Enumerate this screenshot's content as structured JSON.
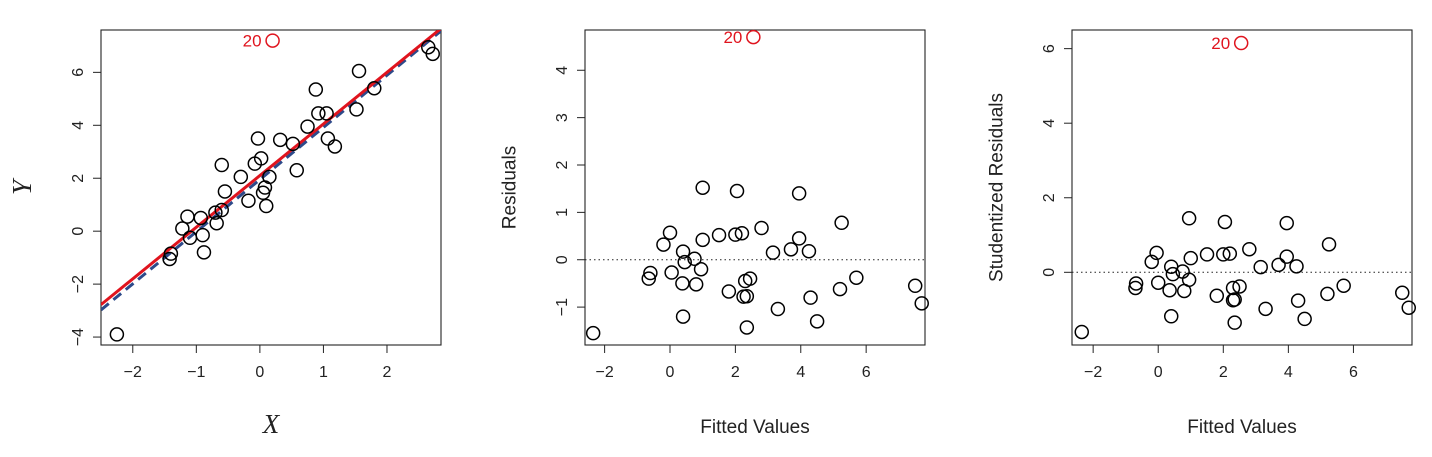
{
  "colors": {
    "points": "#000000",
    "highlight": "#e0141e",
    "fit_line": "#e0141e",
    "dashed_line": "#2d4a8a",
    "axis": "#222222"
  },
  "chart_data": [
    {
      "type": "scatter",
      "xlabel": "X",
      "ylabel": "Y",
      "xlim": [
        -2.5,
        2.85
      ],
      "ylim": [
        -4.3,
        7.6
      ],
      "xticks": [
        -2,
        -1,
        0,
        1,
        2
      ],
      "yticks": [
        -4,
        -2,
        0,
        2,
        4,
        6
      ],
      "annotation": {
        "label": "20",
        "x": 0.2,
        "y": 7.2
      },
      "points": [
        {
          "x": -2.25,
          "y": -3.9
        },
        {
          "x": -1.42,
          "y": -1.05
        },
        {
          "x": -1.4,
          "y": -0.85
        },
        {
          "x": -1.22,
          "y": 0.1
        },
        {
          "x": -1.14,
          "y": 0.55
        },
        {
          "x": -1.1,
          "y": -0.25
        },
        {
          "x": -0.93,
          "y": 0.5
        },
        {
          "x": -0.9,
          "y": -0.15
        },
        {
          "x": -0.88,
          "y": -0.8
        },
        {
          "x": -0.7,
          "y": 0.7
        },
        {
          "x": -0.68,
          "y": 0.3
        },
        {
          "x": -0.6,
          "y": 0.8
        },
        {
          "x": -0.6,
          "y": 2.5
        },
        {
          "x": -0.55,
          "y": 1.5
        },
        {
          "x": -0.3,
          "y": 2.05
        },
        {
          "x": -0.18,
          "y": 1.15
        },
        {
          "x": -0.08,
          "y": 2.55
        },
        {
          "x": -0.03,
          "y": 3.5
        },
        {
          "x": 0.02,
          "y": 2.75
        },
        {
          "x": 0.05,
          "y": 1.45
        },
        {
          "x": 0.08,
          "y": 1.65
        },
        {
          "x": 0.1,
          "y": 0.95
        },
        {
          "x": 0.15,
          "y": 2.05
        },
        {
          "x": 0.32,
          "y": 3.45
        },
        {
          "x": 0.52,
          "y": 3.3
        },
        {
          "x": 0.58,
          "y": 2.3
        },
        {
          "x": 0.75,
          "y": 3.95
        },
        {
          "x": 0.88,
          "y": 5.35
        },
        {
          "x": 0.92,
          "y": 4.45
        },
        {
          "x": 1.05,
          "y": 4.45
        },
        {
          "x": 1.07,
          "y": 3.5
        },
        {
          "x": 1.18,
          "y": 3.2
        },
        {
          "x": 1.52,
          "y": 4.6
        },
        {
          "x": 1.56,
          "y": 6.05
        },
        {
          "x": 1.8,
          "y": 5.4
        },
        {
          "x": 2.65,
          "y": 6.95
        },
        {
          "x": 2.72,
          "y": 6.7
        }
      ],
      "highlight_point": {
        "x": 0.2,
        "y": 7.2
      },
      "fit_line": {
        "intercept": 2.1,
        "slope": 1.95
      },
      "dashed_line": {
        "intercept": 1.95,
        "slope": 1.97
      }
    },
    {
      "type": "scatter",
      "xlabel": "Fitted Values",
      "ylabel": "Residuals",
      "xlim": [
        -2.6,
        7.8
      ],
      "ylim": [
        -1.8,
        4.85
      ],
      "xticks": [
        -2,
        0,
        2,
        4,
        6
      ],
      "yticks": [
        -1,
        0,
        1,
        2,
        3,
        4
      ],
      "reference_line": 0,
      "annotation": {
        "label": "20",
        "x": 2.55,
        "y": 4.7
      },
      "points": [
        {
          "x": -2.35,
          "y": -1.55
        },
        {
          "x": -0.65,
          "y": -0.4
        },
        {
          "x": -0.6,
          "y": -0.28
        },
        {
          "x": -0.2,
          "y": 0.32
        },
        {
          "x": 0.0,
          "y": 0.57
        },
        {
          "x": 0.05,
          "y": -0.27
        },
        {
          "x": 0.38,
          "y": -0.5
        },
        {
          "x": 0.4,
          "y": -1.2
        },
        {
          "x": 0.4,
          "y": 0.17
        },
        {
          "x": 0.45,
          "y": -0.05
        },
        {
          "x": 0.75,
          "y": 0.02
        },
        {
          "x": 0.8,
          "y": -0.52
        },
        {
          "x": 0.95,
          "y": -0.2
        },
        {
          "x": 1.0,
          "y": 0.42
        },
        {
          "x": 1.0,
          "y": 1.52
        },
        {
          "x": 1.5,
          "y": 0.52
        },
        {
          "x": 1.8,
          "y": -0.67
        },
        {
          "x": 2.0,
          "y": 0.53
        },
        {
          "x": 2.05,
          "y": 1.45
        },
        {
          "x": 2.2,
          "y": 0.56
        },
        {
          "x": 2.25,
          "y": -0.78
        },
        {
          "x": 2.3,
          "y": -0.45
        },
        {
          "x": 2.35,
          "y": -0.77
        },
        {
          "x": 2.35,
          "y": -1.43
        },
        {
          "x": 2.45,
          "y": -0.4
        },
        {
          "x": 2.8,
          "y": 0.67
        },
        {
          "x": 3.15,
          "y": 0.15
        },
        {
          "x": 3.3,
          "y": -1.04
        },
        {
          "x": 3.7,
          "y": 0.22
        },
        {
          "x": 3.95,
          "y": 0.45
        },
        {
          "x": 3.95,
          "y": 1.4
        },
        {
          "x": 4.25,
          "y": 0.18
        },
        {
          "x": 4.3,
          "y": -0.8
        },
        {
          "x": 4.5,
          "y": -1.3
        },
        {
          "x": 5.2,
          "y": -0.62
        },
        {
          "x": 5.25,
          "y": 0.78
        },
        {
          "x": 5.7,
          "y": -0.38
        },
        {
          "x": 7.5,
          "y": -0.55
        },
        {
          "x": 7.7,
          "y": -0.92
        }
      ],
      "highlight_point": {
        "x": 2.55,
        "y": 4.7
      }
    },
    {
      "type": "scatter",
      "xlabel": "Fitted Values",
      "ylabel": "Studentized Residuals",
      "xlim": [
        -2.65,
        7.8
      ],
      "ylim": [
        -1.95,
        6.5
      ],
      "xticks": [
        -2,
        0,
        2,
        4,
        6
      ],
      "yticks": [
        0,
        2,
        4,
        6
      ],
      "reference_line": 0,
      "annotation": {
        "label": "20",
        "x": 2.55,
        "y": 6.15
      },
      "points": [
        {
          "x": -2.35,
          "y": -1.6
        },
        {
          "x": -0.7,
          "y": -0.42
        },
        {
          "x": -0.68,
          "y": -0.3
        },
        {
          "x": -0.2,
          "y": 0.28
        },
        {
          "x": -0.05,
          "y": 0.52
        },
        {
          "x": 0.0,
          "y": -0.28
        },
        {
          "x": 0.35,
          "y": -0.48
        },
        {
          "x": 0.4,
          "y": -1.18
        },
        {
          "x": 0.4,
          "y": 0.15
        },
        {
          "x": 0.45,
          "y": -0.05
        },
        {
          "x": 0.75,
          "y": 0.02
        },
        {
          "x": 0.8,
          "y": -0.5
        },
        {
          "x": 0.95,
          "y": -0.2
        },
        {
          "x": 1.0,
          "y": 0.38
        },
        {
          "x": 0.95,
          "y": 1.45
        },
        {
          "x": 1.5,
          "y": 0.48
        },
        {
          "x": 1.8,
          "y": -0.63
        },
        {
          "x": 2.0,
          "y": 0.48
        },
        {
          "x": 2.05,
          "y": 1.35
        },
        {
          "x": 2.2,
          "y": 0.5
        },
        {
          "x": 2.3,
          "y": -0.75
        },
        {
          "x": 2.3,
          "y": -0.42
        },
        {
          "x": 2.35,
          "y": -0.73
        },
        {
          "x": 2.35,
          "y": -1.35
        },
        {
          "x": 2.5,
          "y": -0.38
        },
        {
          "x": 2.8,
          "y": 0.62
        },
        {
          "x": 3.15,
          "y": 0.14
        },
        {
          "x": 3.3,
          "y": -0.98
        },
        {
          "x": 3.7,
          "y": 0.2
        },
        {
          "x": 3.95,
          "y": 0.42
        },
        {
          "x": 3.95,
          "y": 1.32
        },
        {
          "x": 4.25,
          "y": 0.16
        },
        {
          "x": 4.3,
          "y": -0.76
        },
        {
          "x": 4.5,
          "y": -1.25
        },
        {
          "x": 5.2,
          "y": -0.58
        },
        {
          "x": 5.25,
          "y": 0.75
        },
        {
          "x": 5.7,
          "y": -0.36
        },
        {
          "x": 7.5,
          "y": -0.55
        },
        {
          "x": 7.7,
          "y": -0.95
        }
      ],
      "highlight_point": {
        "x": 2.55,
        "y": 6.15
      }
    }
  ]
}
